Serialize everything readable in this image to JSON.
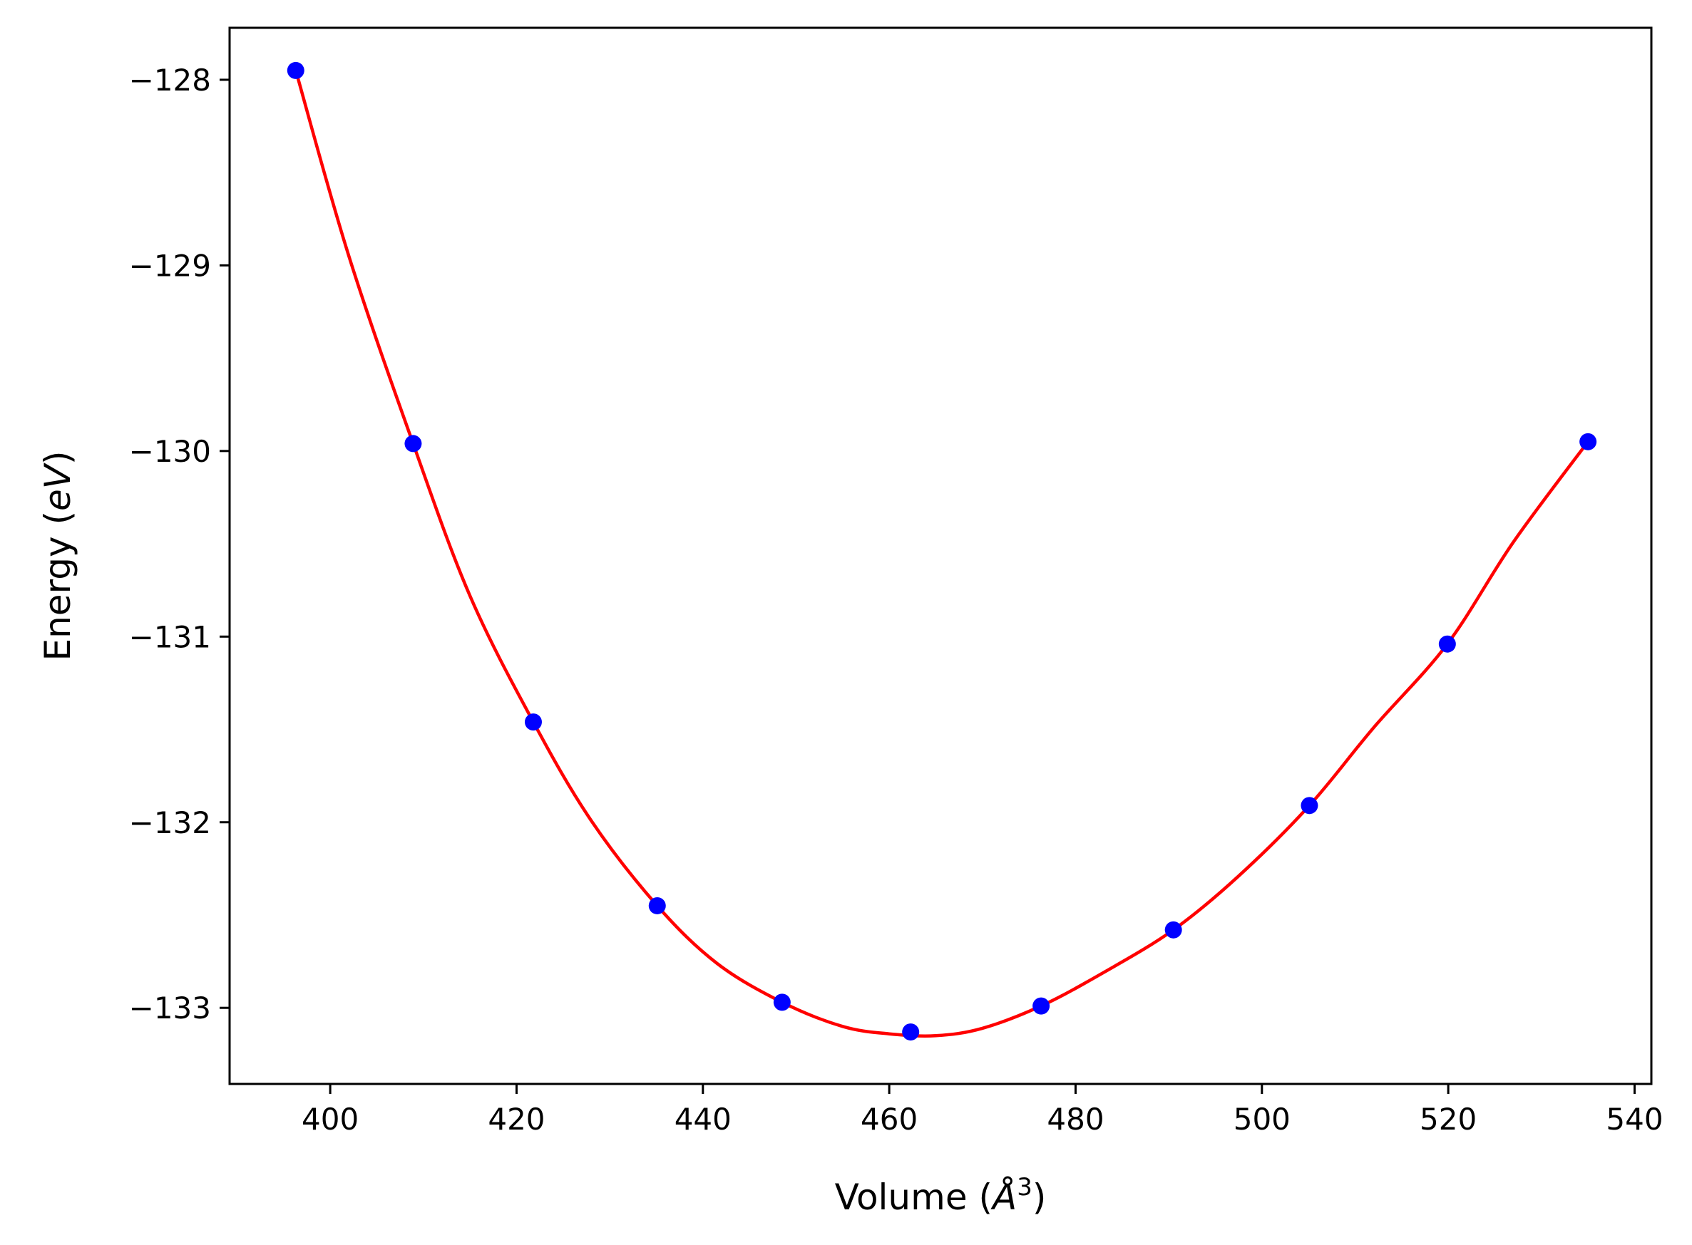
{
  "chart_data": {
    "type": "scatter",
    "title": "",
    "xlabel": {
      "prefix": "Volume (",
      "italic": "Å",
      "sup": "3",
      "suffix": ")"
    },
    "ylabel": {
      "prefix": "Energy (",
      "italic": "eV",
      "suffix": ")"
    },
    "xlim": [
      389.2,
      541.8
    ],
    "ylim": [
      -133.41,
      -127.72
    ],
    "xticks": [
      400,
      420,
      440,
      460,
      480,
      500,
      520,
      540
    ],
    "xtick_labels": [
      "400",
      "420",
      "440",
      "460",
      "480",
      "500",
      "520",
      "540"
    ],
    "yticks": [
      -128,
      -129,
      -130,
      -131,
      -132,
      -133
    ],
    "ytick_labels": [
      "−128",
      "−129",
      "−130",
      "−131",
      "−132",
      "−133"
    ],
    "grid": false,
    "series": [
      {
        "kind": "points",
        "color": "#0000ff",
        "x": [
          396.3,
          408.9,
          421.8,
          435.1,
          448.5,
          462.3,
          476.3,
          490.5,
          505.1,
          519.9,
          535.0
        ],
        "y": [
          -127.95,
          -129.96,
          -131.46,
          -132.45,
          -132.97,
          -133.13,
          -132.99,
          -132.58,
          -131.91,
          -131.04,
          -129.95
        ]
      },
      {
        "kind": "fit-curve",
        "color": "#ff0000",
        "x": [
          396.3,
          402.0,
          408.9,
          415.0,
          421.8,
          428.0,
          435.1,
          441.5,
          448.5,
          455.0,
          460.0,
          465.0,
          470.0,
          476.3,
          483.0,
          490.5,
          497.5,
          505.1,
          512.0,
          519.9,
          527.0,
          535.0
        ],
        "y": [
          -127.95,
          -128.95,
          -129.96,
          -130.78,
          -131.46,
          -131.99,
          -132.45,
          -132.76,
          -132.97,
          -133.1,
          -133.14,
          -133.15,
          -133.11,
          -132.99,
          -132.81,
          -132.58,
          -132.29,
          -131.91,
          -131.49,
          -131.04,
          -130.49,
          -129.95
        ]
      }
    ]
  }
}
